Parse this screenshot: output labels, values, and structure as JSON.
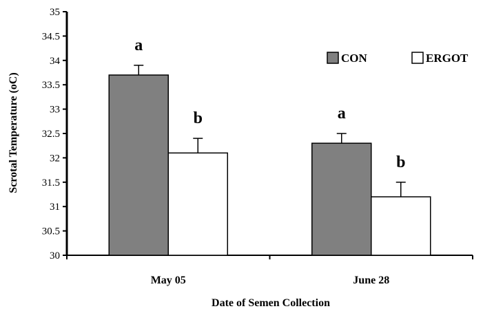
{
  "chart_data": {
    "type": "bar",
    "xlabel": "Date of Semen Collection",
    "ylabel": "Scrotal Temperature (oC)",
    "ylim": [
      30,
      35
    ],
    "yticks": [
      "30",
      "30.5",
      "31",
      "31.5",
      "32",
      "32.5",
      "33",
      "33.5",
      "34",
      "34.5",
      "35"
    ],
    "categories": [
      "May 05",
      "June 28"
    ],
    "legend_position": "top-right",
    "grid": false,
    "series": [
      {
        "name": "CON",
        "color": "#808080",
        "values": [
          33.7,
          32.3
        ],
        "errors": [
          0.2,
          0.2
        ],
        "labels": [
          "a",
          "a"
        ]
      },
      {
        "name": "ERGOT",
        "color": "#ffffff",
        "values": [
          32.1,
          31.2
        ],
        "errors": [
          0.3,
          0.3
        ],
        "labels": [
          "b",
          "b"
        ]
      }
    ]
  }
}
